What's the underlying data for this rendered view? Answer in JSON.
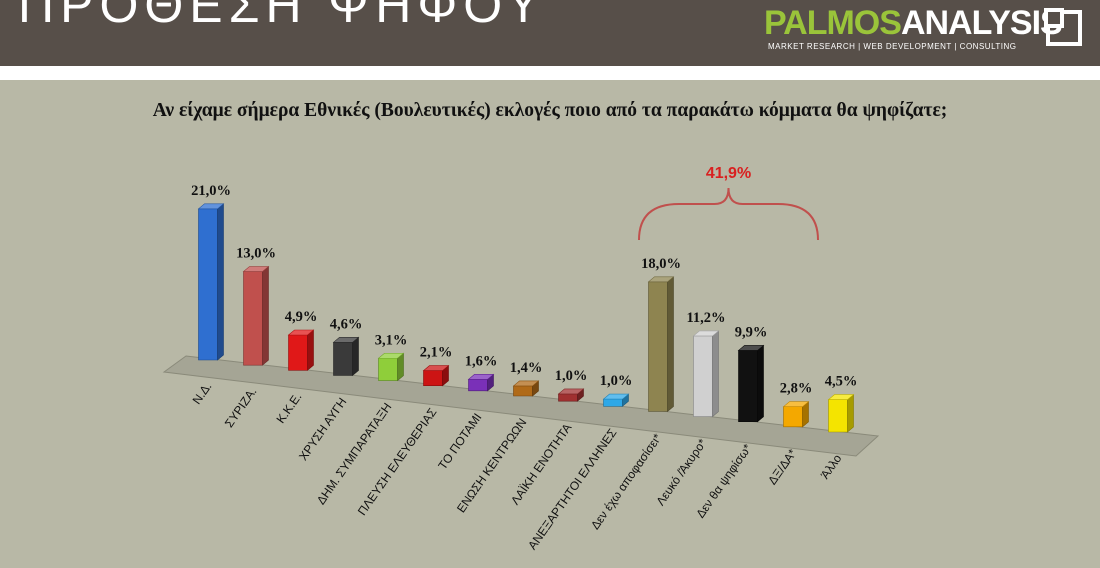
{
  "header": {
    "title": "ΠΡΟΘΕΣΗ ΨΗΦΟΥ"
  },
  "logo": {
    "name_part1": "PALMOS",
    "name_part2": "ANALYSIS",
    "tagline": "MARKET RESEARCH | WEB DEVELOPMENT | CONSULTING",
    "color_green": "#9ac43a"
  },
  "chart_data": {
    "type": "bar",
    "title": "Αν είχαμε σήμερα Εθνικές (Βουλευτικές) εκλογές ποιο από τα παρακάτω κόμματα θα ψηφίζατε;",
    "categories": [
      "Ν.Δ.",
      "ΣΥΡΙΖΑ.",
      "Κ.Κ.Ε.",
      "ΧΡΥΣΗ ΑΥΓΗ",
      "ΔΗΜ. ΣΥΜΠΑΡΑΤΑΞΗ",
      "ΠΛΕΥΣΗ ΕΛΕΥΘΕΡΙΑΣ",
      "ΤΟ ΠΟΤΑΜΙ",
      "ΕΝΩΣΗ ΚΕΝΤΡΩΩΝ",
      "ΛΑΪΚΗ ΕΝΟΤΗΤΑ",
      "ΑΝΕΞΑΡΤΗΤΟΙ ΕΛΛΗΝΕΣ",
      "Δεν έχω αποφασίσει*",
      "Λευκό /Άκυρο*",
      "Δεν θα ψηφίσω*",
      "ΔΞ/ΔΑ*",
      "Άλλο"
    ],
    "values": [
      21.0,
      13.0,
      4.9,
      4.6,
      3.1,
      2.1,
      1.6,
      1.4,
      1.0,
      1.0,
      18.0,
      11.2,
      9.9,
      2.8,
      4.5
    ],
    "value_labels": [
      "21,0%",
      "13,0%",
      "4,9%",
      "4,6%",
      "3,1%",
      "2,1%",
      "1,6%",
      "1,4%",
      "1,0%",
      "1,0%",
      "18,0%",
      "11,2%",
      "9,9%",
      "2,8%",
      "4,5%"
    ],
    "colors": [
      "#2f6fd0",
      "#c0504d",
      "#e01818",
      "#3a3a3a",
      "#8fce3a",
      "#cc1414",
      "#7a30b8",
      "#b06a18",
      "#a03030",
      "#2ea8e8",
      "#8e8450",
      "#d0d0d0",
      "#111111",
      "#f4a800",
      "#f4e400"
    ],
    "annotation": {
      "text": "41,9%",
      "spans_categories": [
        "Δεν έχω αποφασίσει*",
        "Λευκό /Άκυρο*",
        "Δεν θα ψηφίσω*",
        "ΔΞ/ΔΑ*"
      ]
    },
    "legend": "none",
    "grid": false
  }
}
